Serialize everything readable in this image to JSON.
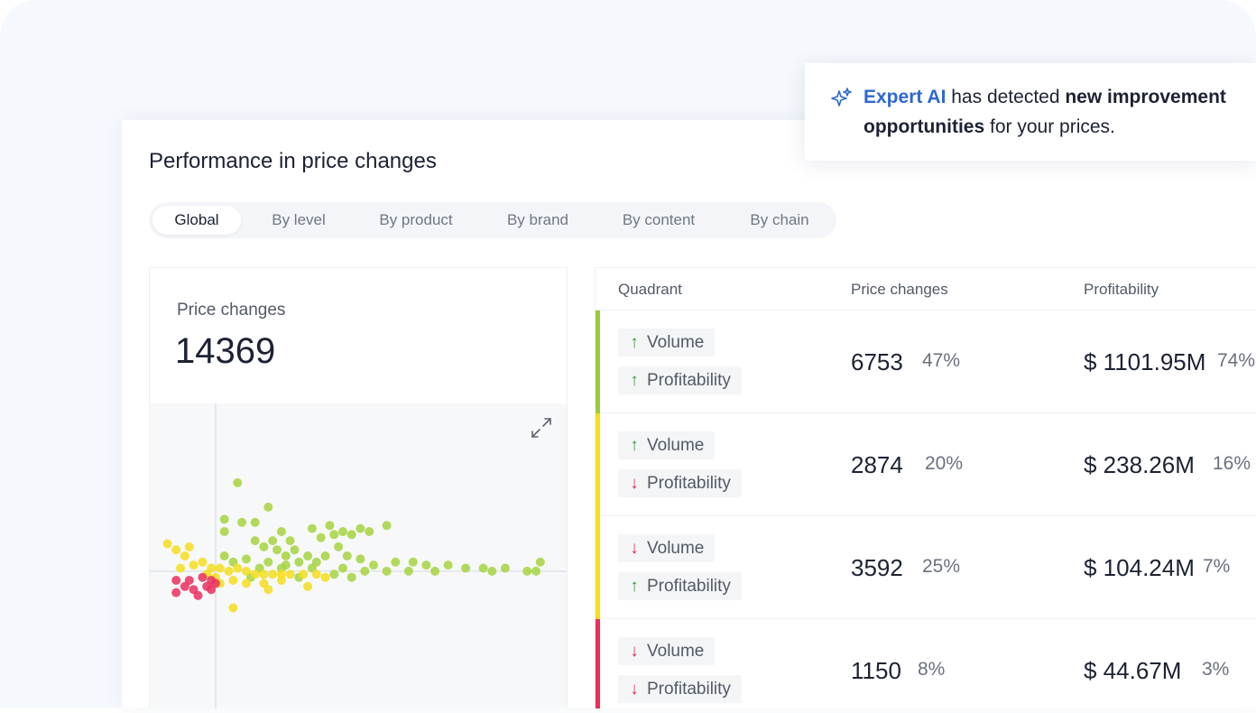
{
  "title": "Performance in price changes",
  "tabs": [
    {
      "label": "Global",
      "active": true
    },
    {
      "label": "By level",
      "active": false
    },
    {
      "label": "By product",
      "active": false
    },
    {
      "label": "By brand",
      "active": false
    },
    {
      "label": "By content",
      "active": false
    },
    {
      "label": "By chain",
      "active": false
    }
  ],
  "stats": {
    "label": "Price changes",
    "value": "14369",
    "expand_icon": "expand-icon"
  },
  "banner": {
    "icon": "sparkle-icon",
    "brand": "Expert AI",
    "text1": " has detected ",
    "bold1": "new improvement",
    "bold2": "opportunities",
    "text2": " for your prices."
  },
  "table": {
    "headers": {
      "quadrant": "Quadrant",
      "price_changes": "Price changes",
      "profitability": "Profitability"
    },
    "rows": [
      {
        "color": "#9acd3c",
        "volume": {
          "label": "Volume",
          "dir": "up"
        },
        "profitability": {
          "label": "Profitability",
          "dir": "up"
        },
        "changes": "6753",
        "changes_pct": "47%",
        "profit": "$ 1101.95M",
        "profit_pct": "74%"
      },
      {
        "color": "#f3df1a",
        "volume": {
          "label": "Volume",
          "dir": "up"
        },
        "profitability": {
          "label": "Profitability",
          "dir": "down"
        },
        "changes": "2874",
        "changes_pct": "20%",
        "profit": "$ 238.26M",
        "profit_pct": "16%"
      },
      {
        "color": "#f3df1a",
        "volume": {
          "label": "Volume",
          "dir": "down"
        },
        "profitability": {
          "label": "Profitability",
          "dir": "up"
        },
        "changes": "3592",
        "changes_pct": "25%",
        "profit": "$ 104.24M",
        "profit_pct": "7%"
      },
      {
        "color": "#ea2f5e",
        "volume": {
          "label": "Volume",
          "dir": "down"
        },
        "profitability": {
          "label": "Profitability",
          "dir": "down"
        },
        "changes": "1150",
        "changes_pct": "8%",
        "profit": "$ 44.67M",
        "profit_pct": "3%"
      }
    ]
  },
  "chart_data": {
    "type": "scatter",
    "title": "",
    "xlabel": "",
    "ylabel": "",
    "xlim": [
      -1.5,
      8
    ],
    "ylim": [
      -4.5,
      5.5
    ],
    "grid": false,
    "series_colors": {
      "green": "#a6d33e",
      "yellow": "#f4de1c",
      "red": "#ea2f5e"
    },
    "points": [
      [
        0.5,
        2.9,
        "green"
      ],
      [
        1.2,
        2.1,
        "green"
      ],
      [
        0.2,
        1.7,
        "green"
      ],
      [
        0.6,
        1.6,
        "green"
      ],
      [
        0.9,
        1.6,
        "green"
      ],
      [
        1.5,
        1.3,
        "green"
      ],
      [
        2.6,
        1.5,
        "green"
      ],
      [
        2.2,
        1.4,
        "green"
      ],
      [
        3.9,
        1.5,
        "green"
      ],
      [
        3.5,
        1.3,
        "green"
      ],
      [
        3.3,
        1.4,
        "green"
      ],
      [
        3.1,
        1.2,
        "green"
      ],
      [
        2.9,
        1.3,
        "green"
      ],
      [
        2.7,
        1.2,
        "green"
      ],
      [
        2.4,
        1.1,
        "green"
      ],
      [
        0.2,
        1.3,
        "green"
      ],
      [
        0.9,
        1.0,
        "green"
      ],
      [
        1.3,
        1.0,
        "green"
      ],
      [
        1.7,
        1.0,
        "green"
      ],
      [
        1.1,
        0.8,
        "green"
      ],
      [
        1.4,
        0.7,
        "green"
      ],
      [
        1.8,
        0.7,
        "green"
      ],
      [
        1.6,
        0.5,
        "green"
      ],
      [
        2.1,
        0.5,
        "green"
      ],
      [
        2.5,
        0.5,
        "green"
      ],
      [
        2.8,
        0.8,
        "green"
      ],
      [
        3.0,
        0.5,
        "green"
      ],
      [
        2.3,
        0.3,
        "green"
      ],
      [
        1.9,
        0.3,
        "green"
      ],
      [
        3.3,
        0.4,
        "green"
      ],
      [
        3.6,
        0.2,
        "green"
      ],
      [
        4.1,
        0.3,
        "green"
      ],
      [
        4.5,
        0.3,
        "green"
      ],
      [
        4.8,
        0.2,
        "green"
      ],
      [
        5.3,
        0.2,
        "green"
      ],
      [
        5.7,
        0.1,
        "green"
      ],
      [
        6.1,
        0.1,
        "green"
      ],
      [
        6.6,
        0.1,
        "green"
      ],
      [
        7.1,
        0.0,
        "green"
      ],
      [
        7.3,
        0.0,
        "green"
      ],
      [
        7.4,
        0.3,
        "green"
      ],
      [
        6.3,
        0.0,
        "green"
      ],
      [
        5.0,
        0.0,
        "green"
      ],
      [
        4.4,
        0.0,
        "green"
      ],
      [
        3.9,
        0.0,
        "green"
      ],
      [
        3.4,
        0.0,
        "green"
      ],
      [
        2.9,
        0.1,
        "green"
      ],
      [
        2.2,
        0.1,
        "green"
      ],
      [
        1.6,
        0.2,
        "green"
      ],
      [
        1.2,
        0.3,
        "green"
      ],
      [
        0.7,
        0.4,
        "green"
      ],
      [
        0.4,
        0.3,
        "green"
      ],
      [
        0.2,
        0.5,
        "green"
      ],
      [
        1.0,
        0.1,
        "green"
      ],
      [
        1.5,
        0.1,
        "green"
      ],
      [
        2.7,
        -0.1,
        "green"
      ],
      [
        3.1,
        -0.2,
        "green"
      ],
      [
        0.8,
        -0.2,
        "green"
      ],
      [
        1.9,
        -0.2,
        "green"
      ],
      [
        -1.1,
        0.9,
        "yellow"
      ],
      [
        -0.9,
        0.7,
        "yellow"
      ],
      [
        -0.6,
        0.8,
        "yellow"
      ],
      [
        -0.7,
        0.5,
        "yellow"
      ],
      [
        -0.5,
        0.2,
        "yellow"
      ],
      [
        -0.8,
        0.1,
        "yellow"
      ],
      [
        -0.3,
        0.3,
        "yellow"
      ],
      [
        -0.1,
        0.1,
        "yellow"
      ],
      [
        0.1,
        0.1,
        "yellow"
      ],
      [
        0.3,
        0.0,
        "yellow"
      ],
      [
        0.5,
        0.1,
        "yellow"
      ],
      [
        0.7,
        0.0,
        "yellow"
      ],
      [
        0.9,
        -0.1,
        "yellow"
      ],
      [
        1.1,
        -0.1,
        "yellow"
      ],
      [
        1.3,
        -0.1,
        "yellow"
      ],
      [
        1.5,
        -0.1,
        "yellow"
      ],
      [
        1.7,
        -0.1,
        "yellow"
      ],
      [
        2.0,
        -0.1,
        "yellow"
      ],
      [
        2.3,
        -0.1,
        "yellow"
      ],
      [
        2.5,
        -0.2,
        "yellow"
      ],
      [
        0.0,
        -0.2,
        "yellow"
      ],
      [
        0.4,
        -0.3,
        "yellow"
      ],
      [
        0.7,
        -0.4,
        "yellow"
      ],
      [
        1.1,
        -0.4,
        "yellow"
      ],
      [
        1.5,
        -0.3,
        "yellow"
      ],
      [
        1.2,
        -0.6,
        "yellow"
      ],
      [
        2.1,
        -0.5,
        "yellow"
      ],
      [
        0.1,
        -0.4,
        "yellow"
      ],
      [
        0.4,
        -1.2,
        "yellow"
      ],
      [
        -0.2,
        -0.1,
        "yellow"
      ],
      [
        -0.9,
        -0.3,
        "red"
      ],
      [
        -0.6,
        -0.3,
        "red"
      ],
      [
        -0.3,
        -0.2,
        "red"
      ],
      [
        -0.1,
        -0.3,
        "red"
      ],
      [
        -0.2,
        -0.5,
        "red"
      ],
      [
        -0.5,
        -0.6,
        "red"
      ],
      [
        -0.7,
        -0.5,
        "red"
      ],
      [
        -0.9,
        -0.7,
        "red"
      ],
      [
        -0.4,
        -0.8,
        "red"
      ],
      [
        -0.1,
        -0.6,
        "red"
      ],
      [
        0.0,
        -0.4,
        "red"
      ]
    ]
  }
}
